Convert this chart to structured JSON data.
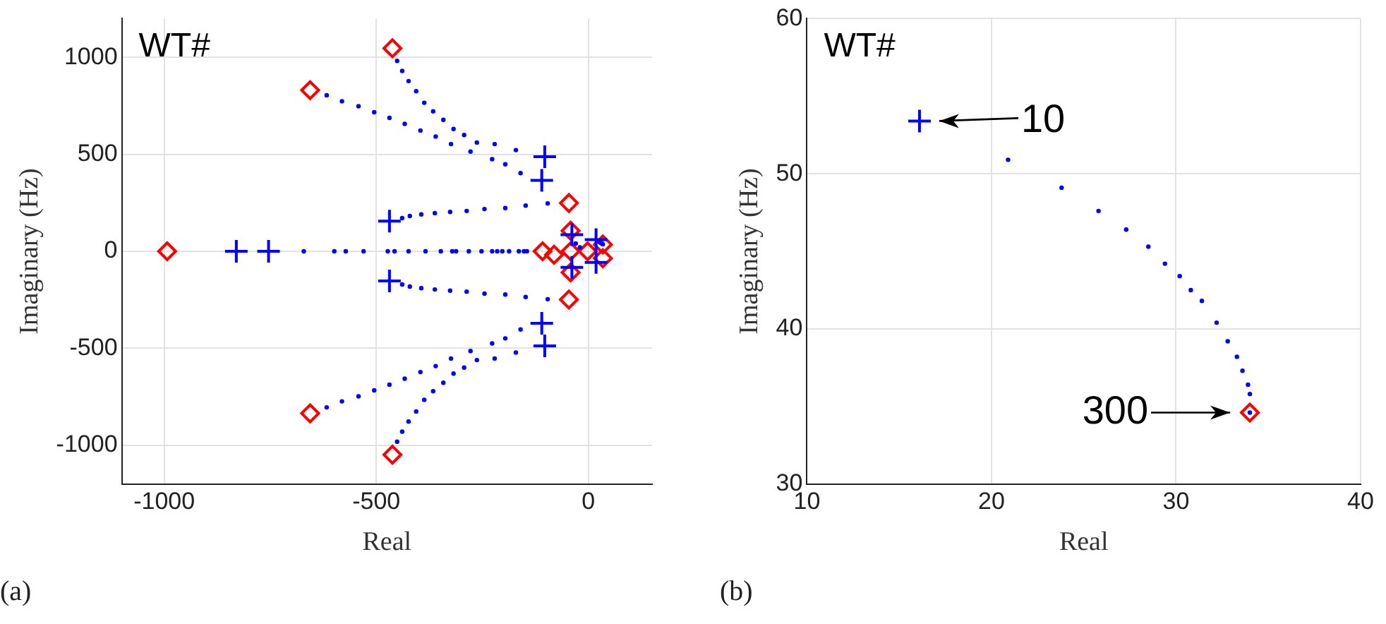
{
  "chart_data": [
    {
      "type": "scatter",
      "xlabel": "Real",
      "ylabel": "Imaginary (Hz)",
      "xlim": [
        -1100,
        150
      ],
      "ylim": [
        -1200,
        1200
      ],
      "xticks": [
        -1000,
        -500,
        0
      ],
      "yticks": [
        -1000,
        -500,
        0,
        500,
        1000
      ],
      "grid": true,
      "annotations": [
        "WT#",
        "(a)"
      ],
      "series": [
        {
          "marker": "circle",
          "color": "#0000ff",
          "x": [
            -451,
            -439,
            -424,
            -406,
            -387,
            -366,
            -342,
            -318,
            -293,
            -263,
            -221,
            -171,
            -617,
            -581,
            -542,
            -505,
            -469,
            -433,
            -396,
            -360,
            -324,
            -278,
            -227,
            -196,
            -160,
            -96,
            -148,
            -196,
            -245,
            -287,
            -326,
            -362,
            -394,
            -421,
            -439,
            -451,
            -439,
            -424,
            -406,
            -387,
            -366,
            -342,
            -318,
            -293,
            -263,
            -221,
            -171,
            -617,
            -581,
            -542,
            -505,
            -469,
            -433,
            -396,
            -360,
            -324,
            -278,
            -227,
            -196,
            -160,
            -96,
            -148,
            -196,
            -245,
            -287,
            -326,
            -362,
            -394,
            -421,
            -439,
            -671,
            -599,
            -572,
            -530,
            -473,
            -457,
            -424,
            -384,
            -348,
            -321,
            -312,
            -282,
            -252,
            -227,
            -215,
            -203,
            -187,
            -164,
            -152,
            -145,
            -30,
            -20,
            27,
            30,
            32,
            34
          ],
          "values": [
            982,
            930,
            878,
            826,
            766,
            722,
            678,
            631,
            600,
            561,
            553,
            522,
            805,
            774,
            748,
            717,
            688,
            657,
            623,
            592,
            553,
            514,
            475,
            449,
            403,
            247,
            236,
            223,
            218,
            208,
            203,
            197,
            190,
            182,
            171,
            -982,
            -930,
            -878,
            -826,
            -766,
            -722,
            -678,
            -631,
            -600,
            -561,
            -553,
            -522,
            -805,
            -774,
            -748,
            -717,
            -688,
            -657,
            -623,
            -592,
            -553,
            -514,
            -475,
            -449,
            -403,
            -247,
            -236,
            -223,
            -218,
            -208,
            -203,
            -197,
            -190,
            -182,
            -171,
            0,
            0,
            0,
            0,
            0,
            0,
            0,
            0,
            0,
            0,
            0,
            0,
            0,
            0,
            0,
            0,
            0,
            0,
            0,
            0,
            40,
            20,
            46,
            43,
            40,
            36
          ]
        },
        {
          "marker": "cross",
          "color": "#0000ff",
          "x": [
            -103,
            -110,
            -469,
            -469,
            -110,
            -103,
            -830,
            -754,
            -39,
            -39,
            18,
            18
          ],
          "values": [
            488,
            366,
            156,
            -153,
            -371,
            -488,
            0,
            0,
            86,
            -83,
            60,
            -57
          ]
        },
        {
          "marker": "diamond",
          "color": "#ff0000",
          "x": [
            -462,
            -656,
            -46,
            -993,
            -108,
            -81,
            -46,
            -656,
            -462,
            -42,
            -42,
            -2,
            34,
            34,
            -42
          ],
          "values": [
            1047,
            831,
            249,
            0,
            0,
            -18,
            -249,
            -836,
            -1049,
            106,
            -109,
            0,
            35,
            -36,
            0
          ]
        }
      ]
    },
    {
      "type": "scatter",
      "xlabel": "Real",
      "ylabel": "Imaginary (Hz)",
      "xlim": [
        10,
        40
      ],
      "ylim": [
        30,
        60
      ],
      "xticks": [
        10,
        20,
        30,
        40
      ],
      "yticks": [
        30,
        40,
        50,
        60
      ],
      "grid": true,
      "annotations": [
        "WT#",
        "(b)",
        {
          "text": "10",
          "x": 16.1,
          "y": 53.4
        },
        {
          "text": "300",
          "x": 34.0,
          "y": 34.6
        }
      ],
      "series": [
        {
          "marker": "circle",
          "color": "#0000ff",
          "x": [
            20.9,
            23.8,
            25.8,
            27.3,
            28.5,
            29.4,
            30.2,
            30.8,
            31.4,
            32.2,
            32.8,
            33.3,
            33.6,
            33.9,
            34.0,
            34.0
          ],
          "values": [
            50.9,
            49.1,
            47.6,
            46.4,
            45.3,
            44.2,
            43.4,
            42.5,
            41.8,
            40.4,
            39.2,
            38.2,
            37.3,
            36.4,
            35.8,
            34.6
          ]
        },
        {
          "marker": "cross",
          "color": "#0000ff",
          "x": [
            16.1
          ],
          "values": [
            53.4
          ]
        },
        {
          "marker": "diamond",
          "color": "#ff0000",
          "x": [
            34.0
          ],
          "values": [
            34.6
          ]
        }
      ]
    }
  ]
}
